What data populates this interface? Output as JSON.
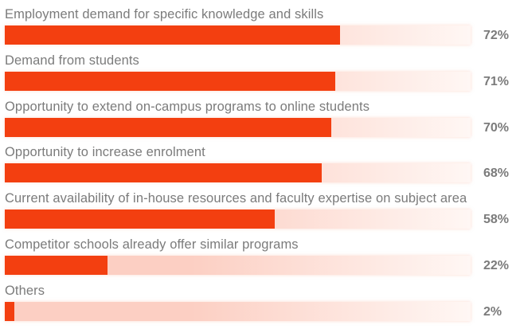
{
  "chart_data": {
    "type": "bar",
    "orientation": "horizontal",
    "categories": [
      "Employment demand for specific knowledge and skills",
      "Demand from students",
      "Opportunity to extend on-campus programs to online students",
      "Opportunity to increase enrolment",
      "Current availability of in-house resources and faculty expertise on subject area",
      "Competitor schools already offer similar programs",
      "Others"
    ],
    "values": [
      72,
      71,
      70,
      68,
      58,
      22,
      2
    ],
    "value_labels": [
      "72%",
      "71%",
      "70%",
      "68%",
      "58%",
      "22%",
      "2%"
    ],
    "xlim": [
      0,
      100
    ],
    "grid": false,
    "colors": {
      "bar": "#f33f10",
      "track": "#fccfc3",
      "text": "#7b7b7b"
    }
  }
}
